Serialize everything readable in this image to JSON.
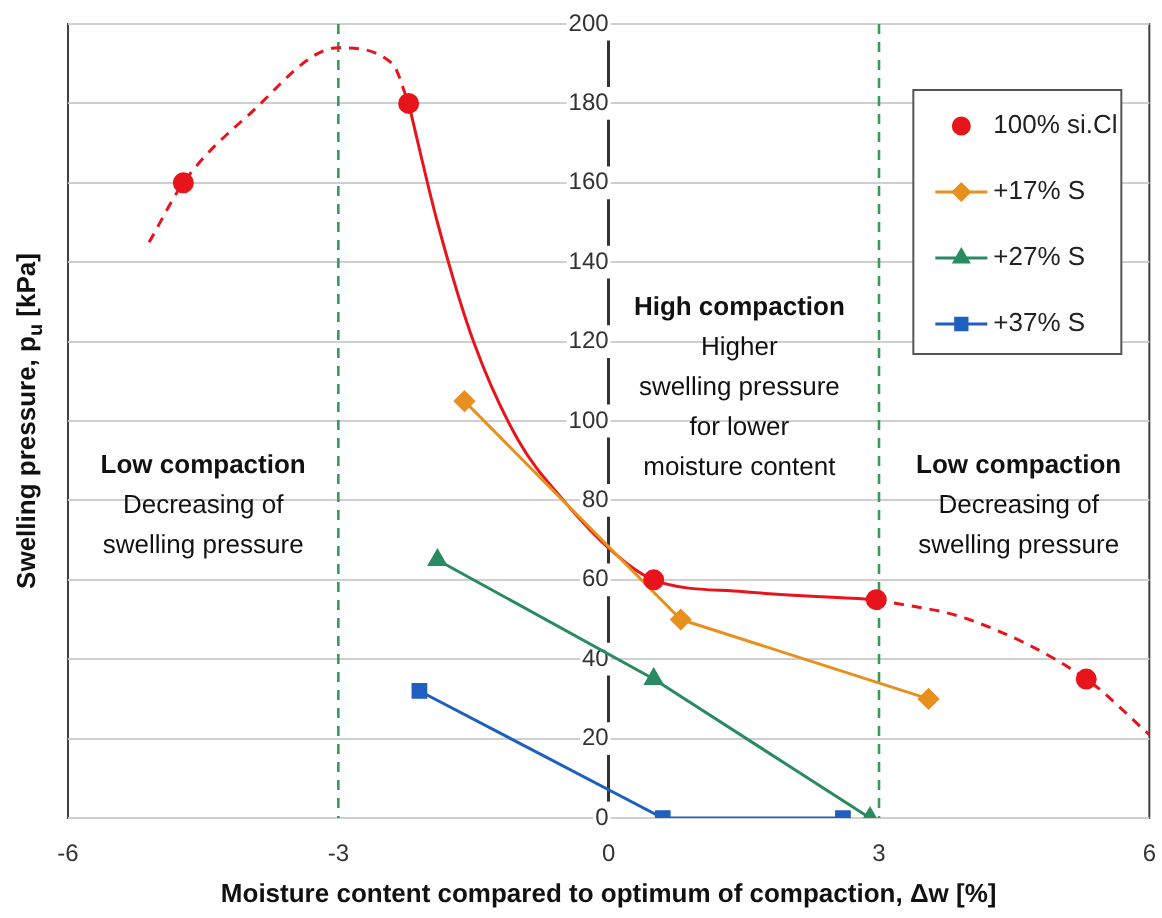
{
  "chart_data": {
    "type": "line",
    "xlabel": "Moisture content compared to optimum of compaction, Δw [%]",
    "ylabel": "Swelling pressure, p$_{u}$ [kPa]",
    "xlim": [
      -6,
      6
    ],
    "xticks": [
      -6,
      -3,
      0,
      3,
      6
    ],
    "ylim": [
      0,
      200
    ],
    "yticks": [
      0,
      20,
      40,
      60,
      80,
      100,
      120,
      140,
      160,
      180,
      200
    ],
    "grid": "y",
    "legend": "top right",
    "series": [
      {
        "name": "100% si.Cl",
        "type": "scatter",
        "color": "#e8141c",
        "marker": "circle",
        "x": [
          -4.72,
          -2.22,
          0.5,
          2.97,
          5.3
        ],
        "values": [
          160,
          180,
          60,
          55,
          35
        ]
      },
      {
        "name": "+17% S",
        "type": "line",
        "color": "#e8901e",
        "marker": "diamond",
        "x": [
          -1.6,
          0.8,
          3.55
        ],
        "values": [
          105,
          50,
          30
        ]
      },
      {
        "name": "+27% S",
        "type": "line",
        "color": "#2a8a62",
        "marker": "triangle",
        "x": [
          -1.9,
          0.5,
          2.9
        ],
        "values": [
          65,
          35,
          0
        ]
      },
      {
        "name": "+37% S",
        "type": "line",
        "color": "#1f5fbf",
        "marker": "square",
        "x": [
          -2.1,
          0.6,
          2.6
        ],
        "values": [
          32,
          0,
          0
        ]
      },
      {
        "type": "line",
        "color": "#e8141c",
        "marker": "none",
        "line_style": "dashed",
        "x": [
          -5.1,
          -4.72,
          -4,
          -3,
          -2.4,
          -2.22
        ],
        "values": [
          145,
          160,
          177,
          194,
          190,
          180
        ]
      },
      {
        "type": "line",
        "color": "#e8141c",
        "marker": "none",
        "line_style": "solid",
        "x": [
          -2.22,
          -1.9,
          -1.5,
          -1,
          -0.5,
          0,
          0.5,
          1.5,
          2.97
        ],
        "values": [
          180,
          150,
          120,
          95,
          80,
          68,
          60,
          57,
          55
        ]
      },
      {
        "type": "line",
        "color": "#e8141c",
        "marker": "none",
        "line_style": "dashed",
        "x": [
          2.97,
          4,
          5.3,
          6
        ],
        "values": [
          55,
          50,
          35,
          21
        ]
      }
    ],
    "ref_lines": [
      {
        "axis": "x",
        "value": -3,
        "color": "#3a9a5a",
        "line_style": "dashed"
      },
      {
        "axis": "x",
        "value": 3,
        "color": "#3a9a5a",
        "line_style": "dashed"
      }
    ],
    "annotations": [
      "Low compaction\nDecreasing of\nswelling pressure",
      "High compaction\nHigher\nswelling pressure\nfor lower\nmoisture content",
      "Low compaction\nDecreasing of\nswelling pressure"
    ]
  }
}
